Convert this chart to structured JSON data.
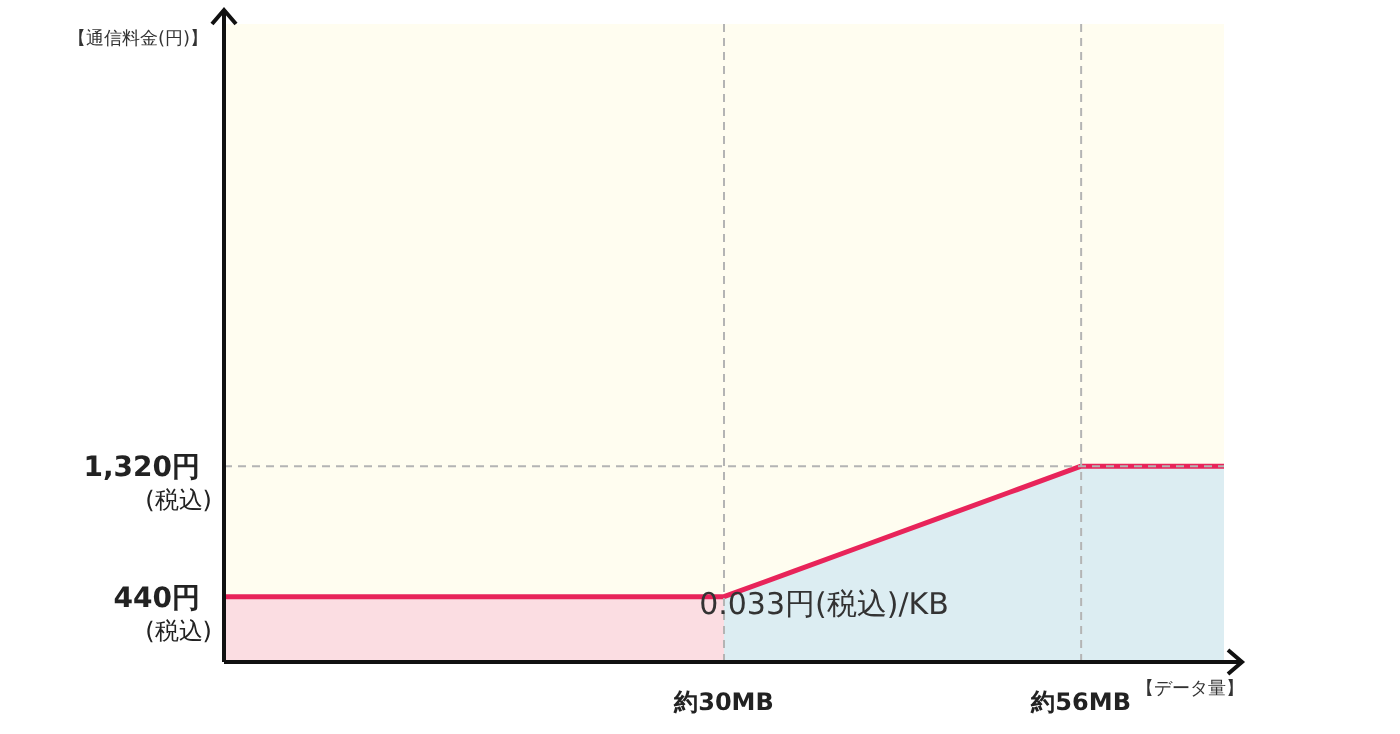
{
  "chart_data": {
    "type": "line",
    "ylabel": "【通信料金(円)】",
    "xlabel": "【データ量】",
    "categories": [
      null,
      null,
      null,
      null,
      null,
      null,
      null,
      "約30MB",
      null,
      null,
      null,
      null,
      "約56MB",
      null,
      null
    ],
    "ylim": [
      0,
      4300
    ],
    "yticks": [
      {
        "value": 440,
        "label": "440円"
      },
      {
        "value": 1320,
        "label": "1,320円"
      }
    ],
    "series": [
      {
        "type": "area",
        "color": "#fbdde2",
        "values": [
          440,
          440,
          440,
          440,
          440,
          440,
          440,
          440,
          null,
          null,
          null,
          null,
          null,
          null,
          null
        ]
      },
      {
        "type": "area",
        "color": "#dcedf2",
        "values": [
          null,
          null,
          null,
          null,
          null,
          null,
          null,
          440,
          616,
          792,
          968,
          1144,
          1320,
          1320,
          1320
        ]
      },
      {
        "color": "#e8245a",
        "values": [
          440,
          440,
          440,
          440,
          440,
          440,
          440,
          440,
          616,
          792,
          968,
          1144,
          1320,
          1320,
          1320
        ]
      }
    ],
    "ref_lines": [
      {
        "axis": "y",
        "value": 1320,
        "color": "#b4b4b4",
        "line_style": "dashed"
      },
      {
        "axis": "x",
        "value": "約30MB",
        "color": "#b4b4b4",
        "line_style": "dashed"
      },
      {
        "axis": "x",
        "value": "約56MB",
        "color": "#b4b4b4",
        "line_style": "dashed"
      }
    ],
    "annotations": [
      "(税込)",
      "(税込)",
      "0.033円(税込)/KB"
    ],
    "marker": "none",
    "line_style": "solid"
  }
}
